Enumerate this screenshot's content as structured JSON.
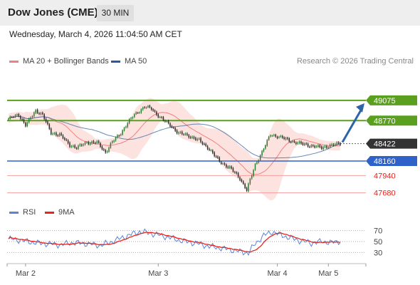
{
  "header": {
    "title": "Dow Jones (CME)",
    "interval": "30 MIN",
    "timestamp": "Wednesday, March 4, 2026 11:04:50 AM CET"
  },
  "legend": {
    "ma20": "MA 20 + Bollinger Bands",
    "ma50": "MA 50",
    "research": "Research © 2026 Trading Central",
    "rsi": "RSI",
    "rsi_ma": "9MA"
  },
  "colors": {
    "ma20": "#f08080",
    "ma50": "#2a5a9e",
    "bollinger_fill": "#fde3e0",
    "candle_up": "#2e7d32",
    "candle_down": "#2d2d2d",
    "resistance": "#5aa01e",
    "support": "#2f62c9",
    "support_secondary": "#f4a0a0",
    "arrow": "#2d64a8",
    "rsi": "#5b84d6",
    "rsi_ma": "#e8241e",
    "current_price": "#333333"
  },
  "chart_data": [
    {
      "type": "candlestick",
      "timeframe": "30 MIN",
      "ylim": [
        47600,
        49300
      ],
      "x_labels": [
        "Mar 2",
        "Mar 3",
        "Mar 4",
        "Mar 5"
      ],
      "current_price": 48422,
      "resistance_levels": [
        49075,
        48770
      ],
      "support_levels": [
        48160,
        47940,
        47680
      ],
      "price_labels": [
        "49075",
        "48770",
        "48422",
        "48160",
        "47940",
        "47680"
      ],
      "forecast_target": 49075,
      "price_anchors": [
        [
          0,
          48800
        ],
        [
          6,
          48860
        ],
        [
          10,
          48700
        ],
        [
          16,
          48920
        ],
        [
          20,
          48860
        ],
        [
          25,
          48580
        ],
        [
          30,
          48560
        ],
        [
          36,
          48400
        ],
        [
          40,
          48360
        ],
        [
          46,
          48440
        ],
        [
          52,
          48440
        ],
        [
          57,
          48290
        ],
        [
          61,
          48450
        ],
        [
          66,
          48580
        ],
        [
          70,
          48740
        ],
        [
          74,
          48860
        ],
        [
          80,
          48980
        ],
        [
          84,
          48950
        ],
        [
          89,
          48820
        ],
        [
          95,
          48700
        ],
        [
          100,
          48580
        ],
        [
          106,
          48540
        ],
        [
          112,
          48470
        ],
        [
          118,
          48340
        ],
        [
          124,
          48150
        ],
        [
          130,
          48060
        ],
        [
          136,
          47900
        ],
        [
          140,
          47720
        ],
        [
          145,
          48100
        ],
        [
          150,
          48350
        ],
        [
          154,
          48560
        ],
        [
          160,
          48520
        ],
        [
          166,
          48460
        ],
        [
          172,
          48420
        ],
        [
          178,
          48390
        ],
        [
          184,
          48360
        ],
        [
          190,
          48400
        ],
        [
          195,
          48422
        ]
      ]
    },
    {
      "type": "line",
      "name": "RSI",
      "y_ticks": [
        70,
        50,
        30
      ],
      "ylim": [
        20,
        80
      ],
      "rsi_anchors": [
        [
          0,
          55
        ],
        [
          8,
          52
        ],
        [
          15,
          48
        ],
        [
          22,
          46
        ],
        [
          30,
          44
        ],
        [
          38,
          48
        ],
        [
          46,
          46
        ],
        [
          54,
          43
        ],
        [
          60,
          49
        ],
        [
          66,
          56
        ],
        [
          72,
          63
        ],
        [
          77,
          68
        ],
        [
          82,
          66
        ],
        [
          88,
          62
        ],
        [
          95,
          57
        ],
        [
          102,
          51
        ],
        [
          110,
          47
        ],
        [
          118,
          41
        ],
        [
          125,
          38
        ],
        [
          132,
          34
        ],
        [
          137,
          31
        ],
        [
          141,
          29
        ],
        [
          145,
          46
        ],
        [
          150,
          61
        ],
        [
          155,
          68
        ],
        [
          160,
          62
        ],
        [
          166,
          56
        ],
        [
          172,
          51
        ],
        [
          178,
          47
        ],
        [
          184,
          50
        ],
        [
          190,
          48
        ],
        [
          195,
          51
        ]
      ]
    }
  ]
}
